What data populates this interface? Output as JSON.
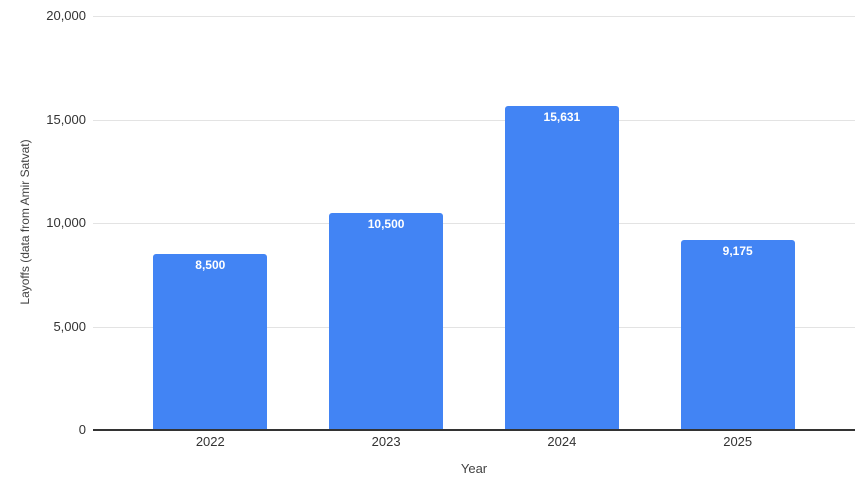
{
  "chart_data": {
    "type": "bar",
    "categories": [
      "2022",
      "2023",
      "2024",
      "2025"
    ],
    "values": [
      8500,
      10500,
      15631,
      9175
    ],
    "bar_labels": [
      "8,500",
      "10,500",
      "15,631",
      "9,175"
    ],
    "title": "",
    "xlabel": "Year",
    "ylabel": "Layoffs (data from Amir Satvat)",
    "ylim": [
      0,
      20000
    ],
    "ytick_values": [
      0,
      5000,
      10000,
      15000,
      20000
    ],
    "ytick_labels": [
      "0",
      "5,000",
      "10,000",
      "15,000",
      "20,000"
    ],
    "grid": true,
    "legend_position": "none",
    "colors": {
      "bar": "#4284f4",
      "bar_label_text": "#ffffff",
      "gridline": "#e3e3e3",
      "axis_baseline": "#333333",
      "tick_text": "#333333",
      "axis_title_text": "#424242",
      "background": "#ffffff"
    }
  }
}
